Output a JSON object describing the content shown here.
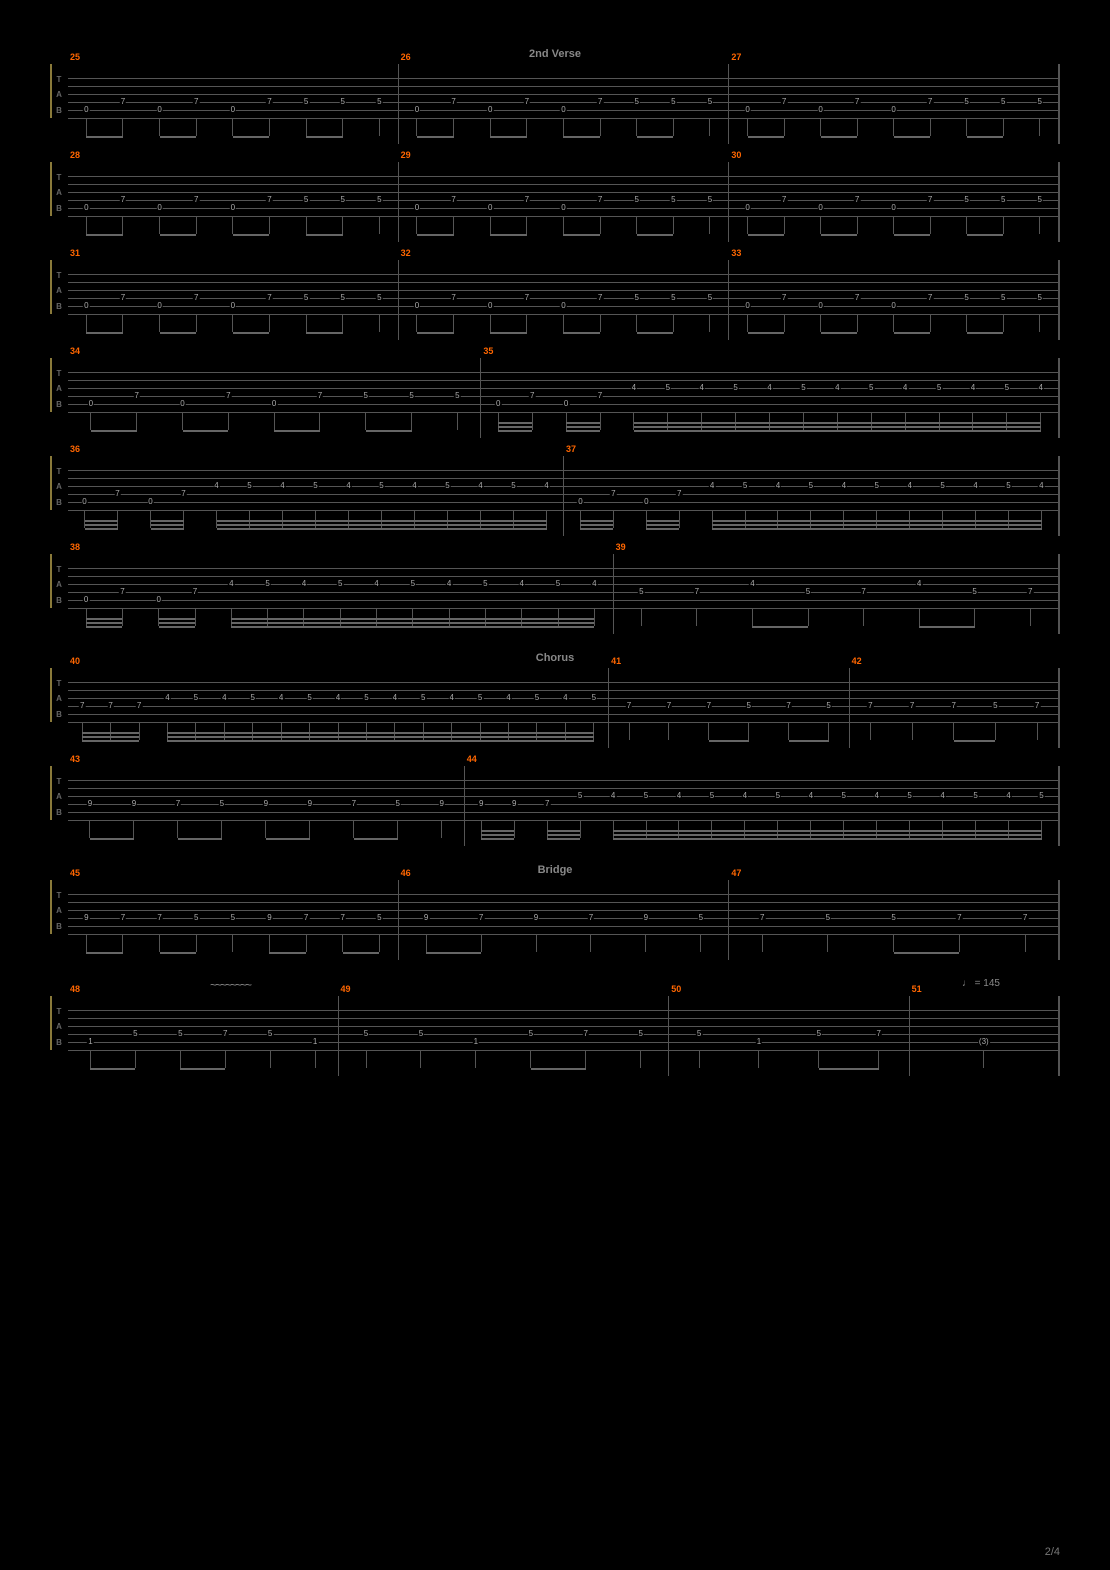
{
  "page_number": "2/4",
  "tempo_marking": "♩ = 145",
  "bg_color": "#000000",
  "staff_line_color": "#555555",
  "bar_number_color": "#ff6600",
  "fret_color": "#aaaaaa",
  "section_label_color": "#888888",
  "clef_border_color": "#8a7a3a",
  "wavy_ornament": "~~~~~~~~",
  "tab_clef": [
    "T",
    "A",
    "B"
  ],
  "string_count": 6,
  "sections": [
    {
      "label": "2nd Verse",
      "before_system": 0
    },
    {
      "label": "Chorus",
      "before_system": 6
    },
    {
      "label": "Bridge",
      "before_system": 8
    }
  ],
  "systems": [
    {
      "measures": [
        {
          "bar": 25,
          "width": 1,
          "pattern": "verse",
          "frets": [
            [
              "0",
              "7"
            ],
            [
              "0",
              "7"
            ],
            [
              "0",
              "7"
            ],
            [
              "5",
              "5"
            ],
            [
              "5"
            ]
          ]
        },
        {
          "bar": 26,
          "width": 1,
          "pattern": "verse",
          "frets": [
            [
              "0",
              "7"
            ],
            [
              "0",
              "7"
            ],
            [
              "0",
              "7"
            ],
            [
              "5",
              "5"
            ],
            [
              "5"
            ]
          ]
        },
        {
          "bar": 27,
          "width": 1,
          "pattern": "verse",
          "frets": [
            [
              "0",
              "7"
            ],
            [
              "0",
              "7"
            ],
            [
              "0",
              "7"
            ],
            [
              "5",
              "5"
            ],
            [
              "5"
            ]
          ]
        }
      ]
    },
    {
      "measures": [
        {
          "bar": 28,
          "width": 1,
          "pattern": "verse",
          "frets": [
            [
              "0",
              "7"
            ],
            [
              "0",
              "7"
            ],
            [
              "0",
              "7"
            ],
            [
              "5",
              "5"
            ],
            [
              "5"
            ]
          ]
        },
        {
          "bar": 29,
          "width": 1,
          "pattern": "verse",
          "frets": [
            [
              "0",
              "7"
            ],
            [
              "0",
              "7"
            ],
            [
              "0",
              "7"
            ],
            [
              "5",
              "5"
            ],
            [
              "5"
            ]
          ]
        },
        {
          "bar": 30,
          "width": 1,
          "pattern": "verse",
          "frets": [
            [
              "0",
              "7"
            ],
            [
              "0",
              "7"
            ],
            [
              "0",
              "7"
            ],
            [
              "5",
              "5"
            ],
            [
              "5"
            ]
          ]
        }
      ]
    },
    {
      "measures": [
        {
          "bar": 31,
          "width": 1,
          "pattern": "verse",
          "frets": [
            [
              "0",
              "7"
            ],
            [
              "0",
              "7"
            ],
            [
              "0",
              "7"
            ],
            [
              "5",
              "5"
            ],
            [
              "5"
            ]
          ]
        },
        {
          "bar": 32,
          "width": 1,
          "pattern": "verse",
          "frets": [
            [
              "0",
              "7"
            ],
            [
              "0",
              "7"
            ],
            [
              "0",
              "7"
            ],
            [
              "5",
              "5"
            ],
            [
              "5"
            ]
          ]
        },
        {
          "bar": 33,
          "width": 1,
          "pattern": "verse",
          "frets": [
            [
              "0",
              "7"
            ],
            [
              "0",
              "7"
            ],
            [
              "0",
              "7"
            ],
            [
              "5",
              "5"
            ],
            [
              "5"
            ]
          ]
        }
      ]
    },
    {
      "measures": [
        {
          "bar": 34,
          "width": 1,
          "pattern": "verse",
          "frets": [
            [
              "0",
              "7"
            ],
            [
              "0",
              "7"
            ],
            [
              "0",
              "7"
            ],
            [
              "5",
              "5"
            ],
            [
              "5"
            ]
          ]
        },
        {
          "bar": 35,
          "width": 1.4,
          "pattern": "trem",
          "frets": [
            [
              "0",
              "7"
            ],
            [
              "0",
              "7"
            ],
            [
              "4",
              "5",
              "4",
              "5",
              "4",
              "5",
              "4",
              "5",
              "4",
              "5",
              "4",
              "5",
              "4"
            ]
          ]
        }
      ]
    },
    {
      "measures": [
        {
          "bar": 36,
          "width": 1,
          "pattern": "trem2",
          "frets": [
            [
              "0",
              "7"
            ],
            [
              "0",
              "7"
            ],
            [
              "4",
              "5",
              "4",
              "5",
              "4",
              "5",
              "4",
              "5",
              "4",
              "5",
              "4"
            ]
          ]
        },
        {
          "bar": 37,
          "width": 1,
          "pattern": "trem2",
          "frets": [
            [
              "0",
              "7"
            ],
            [
              "0",
              "7"
            ],
            [
              "4",
              "5",
              "4",
              "5",
              "4",
              "5",
              "4",
              "5",
              "4",
              "5",
              "4"
            ]
          ]
        }
      ]
    },
    {
      "measures": [
        {
          "bar": 38,
          "width": 1.1,
          "pattern": "trem2",
          "frets": [
            [
              "0",
              "7"
            ],
            [
              "0",
              "7"
            ],
            [
              "4",
              "5",
              "4",
              "5",
              "4",
              "5",
              "4",
              "5",
              "4",
              "5",
              "4"
            ]
          ]
        },
        {
          "bar": 39,
          "width": 0.9,
          "pattern": "bridge39",
          "frets": [
            [
              "5"
            ],
            [
              "7"
            ],
            [
              "4",
              "5"
            ],
            [
              "7"
            ],
            [
              "4",
              "5"
            ],
            [
              "7"
            ]
          ]
        }
      ]
    },
    {
      "measures": [
        {
          "bar": 40,
          "width": 1.8,
          "pattern": "trem3",
          "frets": [
            [
              "7",
              "7",
              "7"
            ],
            [
              "4",
              "5",
              "4",
              "5",
              "4",
              "5",
              "4",
              "5",
              "4",
              "5",
              "4",
              "5",
              "4",
              "5",
              "4",
              "5"
            ]
          ]
        },
        {
          "bar": 41,
          "width": 0.8,
          "pattern": "chorus",
          "frets": [
            [
              "7"
            ],
            [
              "7"
            ],
            [
              "7",
              "5"
            ],
            [
              "7",
              "5"
            ]
          ]
        },
        {
          "bar": 42,
          "width": 0.7,
          "pattern": "chorus",
          "frets": [
            [
              "7"
            ],
            [
              "7"
            ],
            [
              "7",
              "5"
            ],
            [
              "7"
            ]
          ]
        }
      ]
    },
    {
      "measures": [
        {
          "bar": 43,
          "width": 1,
          "pattern": "chorus2",
          "frets": [
            [
              "9",
              "9"
            ],
            [
              "7",
              "5"
            ],
            [
              "9",
              "9"
            ],
            [
              "7",
              "5"
            ],
            [
              "9"
            ]
          ]
        },
        {
          "bar": 44,
          "width": 1.5,
          "pattern": "trem4",
          "frets": [
            [
              "9",
              "9"
            ],
            [
              "7",
              "5"
            ],
            [
              "4",
              "5",
              "4",
              "5",
              "4",
              "5",
              "4",
              "5",
              "4",
              "5",
              "4",
              "5",
              "4",
              "5"
            ]
          ]
        }
      ]
    },
    {
      "measures": [
        {
          "bar": 45,
          "width": 1,
          "pattern": "bridge",
          "frets": [
            [
              "9",
              "7"
            ],
            [
              "7",
              "5"
            ],
            [
              "5"
            ],
            [
              "9",
              "7"
            ],
            [
              "7",
              "5"
            ]
          ]
        },
        {
          "bar": 46,
          "width": 1,
          "pattern": "bridge",
          "frets": [
            [
              "9",
              "7"
            ],
            [
              "9"
            ],
            [
              "7"
            ],
            [
              "9"
            ],
            [
              "5"
            ]
          ]
        },
        {
          "bar": 47,
          "width": 1,
          "pattern": "bridge",
          "frets": [
            [
              "7"
            ],
            [
              "5"
            ],
            [
              "5",
              "7"
            ],
            [
              "7"
            ]
          ]
        }
      ]
    },
    {
      "measures": [
        {
          "bar": 48,
          "width": 0.9,
          "pattern": "outro",
          "frets": [
            [
              "1",
              "5"
            ],
            [
              "5",
              "7"
            ],
            [
              "5"
            ],
            [
              "1"
            ]
          ]
        },
        {
          "bar": 49,
          "width": 1.1,
          "pattern": "outro",
          "frets": [
            [
              "5"
            ],
            [
              "5"
            ],
            [
              "1"
            ],
            [
              "5",
              "7"
            ],
            [
              "5"
            ]
          ]
        },
        {
          "bar": 50,
          "width": 0.8,
          "pattern": "outro",
          "frets": [
            [
              "5"
            ],
            [
              "1"
            ],
            [
              "5",
              "7"
            ]
          ]
        },
        {
          "bar": 51,
          "width": 0.5,
          "pattern": "outro",
          "frets": [
            [
              "(3)"
            ]
          ]
        }
      ]
    }
  ]
}
